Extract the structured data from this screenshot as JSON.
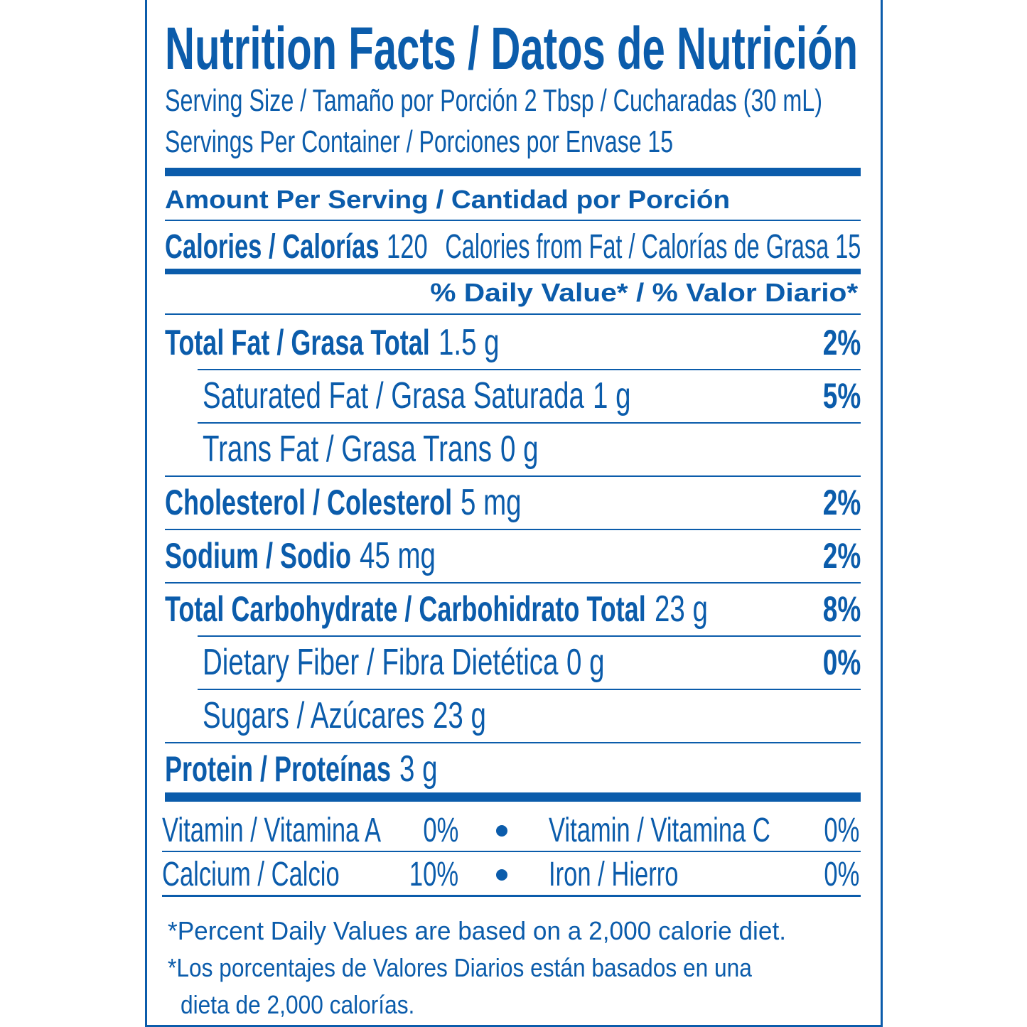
{
  "title": "Nutrition Facts / Datos de Nutrición",
  "serving_size": "Serving Size / Tamaño por Porción 2 Tbsp / Cucharadas (30 mL)",
  "servings_per_container": "Servings Per Container / Porciones por Envase 15",
  "amount_header": "Amount Per Serving / Cantidad por Porción",
  "calories": {
    "label": "Calories / Calorías",
    "amount": "120",
    "from_fat": "Calories from Fat / Calorías de Grasa 15"
  },
  "daily_value_header": "% Daily Value* / % Valor Diario*",
  "nutrients": [
    {
      "label": "Total Fat / Grasa Total",
      "amount": "1.5 g",
      "dv": "2%",
      "sub_rows": [
        {
          "label": "Saturated Fat / Grasa Saturada",
          "amount": "1 g",
          "dv": "5%"
        },
        {
          "label": "Trans Fat / Grasa Trans",
          "amount": "0 g"
        }
      ]
    },
    {
      "label": "Cholesterol / Colesterol",
      "amount": "5 mg",
      "dv": "2%"
    },
    {
      "label": "Sodium / Sodio",
      "amount": "45 mg",
      "dv": "2%"
    },
    {
      "label": "Total Carbohydrate / Carbohidrato Total",
      "amount": "23 g",
      "dv": "8%",
      "sub_rows": [
        {
          "label": "Dietary Fiber / Fibra Dietética",
          "amount": "0 g",
          "dv": "0%"
        },
        {
          "label": "Sugars / Azúcares",
          "amount": "23 g"
        }
      ]
    },
    {
      "label": "Protein / Proteínas",
      "amount": "3 g"
    }
  ],
  "vitamins": [
    [
      {
        "name": "Vitamin / Vitamina A",
        "value": "0%"
      },
      {
        "name": "Vitamin / Vitamina C",
        "value": "0%"
      }
    ],
    [
      {
        "name": "Calcium / Calcio",
        "value": "10%"
      },
      {
        "name": "Iron / Hierro",
        "value": "0%"
      }
    ]
  ],
  "footnotes": [
    [
      "*Percent Daily Values are based on a 2,000 calorie diet."
    ],
    [
      "*Los porcentajes de Valores Diarios están basados en una",
      "dieta de 2,000 calorías."
    ]
  ]
}
